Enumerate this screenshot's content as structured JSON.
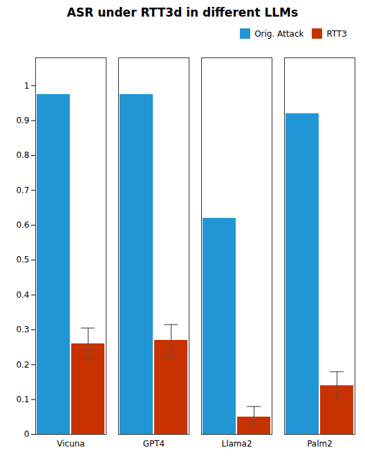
{
  "chart_data": {
    "type": "bar",
    "title": "ASR under RTT3d in different LLMs",
    "categories": [
      "Vicuna",
      "GPT4",
      "Llama2",
      "Palm2"
    ],
    "series": [
      {
        "name": "Orig. Attack",
        "color": "#2196d4",
        "values": [
          0.975,
          0.975,
          0.62,
          0.92
        ]
      },
      {
        "name": "RTT3",
        "color": "#c83200",
        "values": [
          0.26,
          0.27,
          0.05,
          0.14
        ],
        "errors": [
          0.045,
          0.045,
          0.03,
          0.04
        ]
      }
    ],
    "ylim": [
      0,
      1.08
    ],
    "yticks": [
      0,
      0.1,
      0.2,
      0.3,
      0.4,
      0.5,
      0.6,
      0.7,
      0.8,
      0.9,
      1
    ],
    "grid": false,
    "legend": "upper right"
  }
}
